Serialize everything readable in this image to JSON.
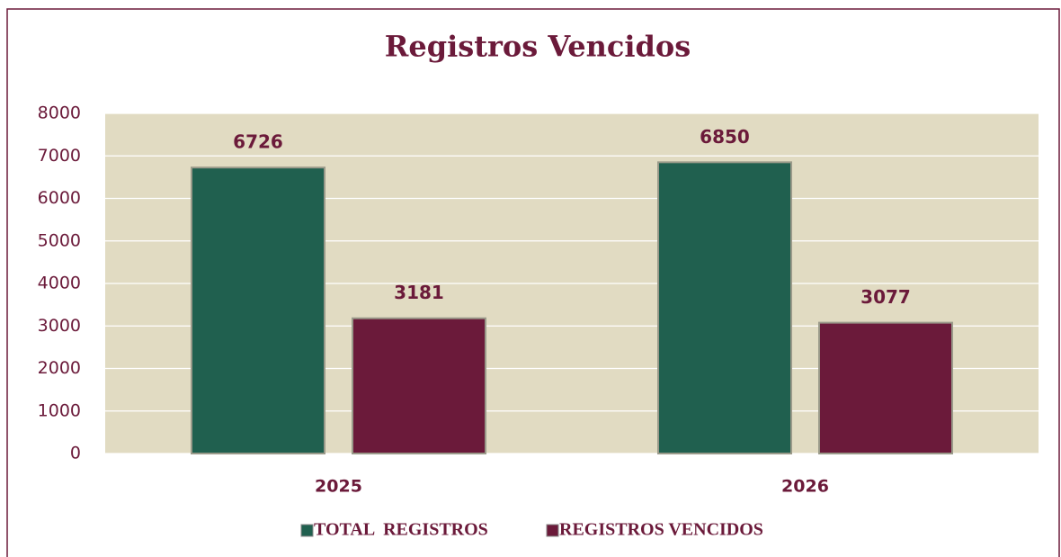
{
  "chart_data": {
    "type": "bar",
    "title": "Registros Vencidos",
    "categories": [
      "2025",
      "2026"
    ],
    "series": [
      {
        "name": "TOTAL  REGISTROS",
        "color": "#20604f",
        "values": [
          6726,
          6850
        ]
      },
      {
        "name": "REGISTROS VENCIDOS",
        "color": "#6b1a3a",
        "values": [
          3181,
          3077
        ]
      }
    ],
    "ylim": [
      0,
      8000
    ],
    "yticks": [
      0,
      1000,
      2000,
      3000,
      4000,
      5000,
      6000,
      7000,
      8000
    ],
    "grid": true,
    "legend": "bottom"
  }
}
